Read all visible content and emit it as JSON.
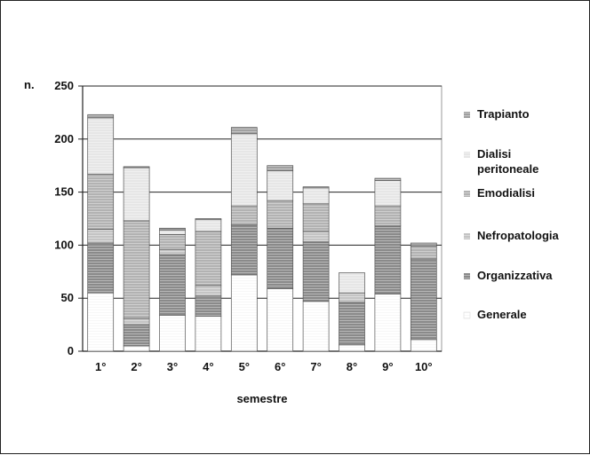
{
  "chart_data": {
    "type": "bar",
    "stacked": true,
    "title": "",
    "ylabel": "n.",
    "xlabel": "semestre",
    "categories": [
      "1°",
      "2°",
      "3°",
      "4°",
      "5°",
      "6°",
      "7°",
      "8°",
      "9°",
      "10°"
    ],
    "ylim": [
      0,
      250
    ],
    "yticks": [
      0,
      50,
      100,
      150,
      200,
      250
    ],
    "grid": "horizontal",
    "legend_position": "right",
    "series": [
      {
        "name": "Generale",
        "color": "#ffffff",
        "values": [
          55,
          5,
          34,
          33,
          72,
          59,
          47,
          6,
          54,
          11
        ]
      },
      {
        "name": "Organizzativa",
        "color": "#8a8a8a",
        "values": [
          47,
          20,
          57,
          19,
          47,
          57,
          56,
          40,
          64,
          76
        ]
      },
      {
        "name": "Nefropatologia",
        "color": "#c4c4c4",
        "values": [
          13,
          6,
          5,
          10,
          0,
          0,
          10,
          9,
          0,
          0
        ]
      },
      {
        "name": "Emodialisi",
        "color": "#b2b2b2",
        "values": [
          52,
          92,
          14,
          51,
          18,
          26,
          26,
          0,
          19,
          12
        ]
      },
      {
        "name": "Dialisi\nperitoneale",
        "color": "#e6e6e6",
        "values": [
          53,
          50,
          4,
          11,
          68,
          28,
          15,
          19,
          24,
          0
        ]
      },
      {
        "name": "Trapianto",
        "color": "#a0a0a0",
        "values": [
          3,
          1,
          2,
          1,
          6,
          5,
          1,
          0,
          2,
          3
        ]
      }
    ]
  }
}
